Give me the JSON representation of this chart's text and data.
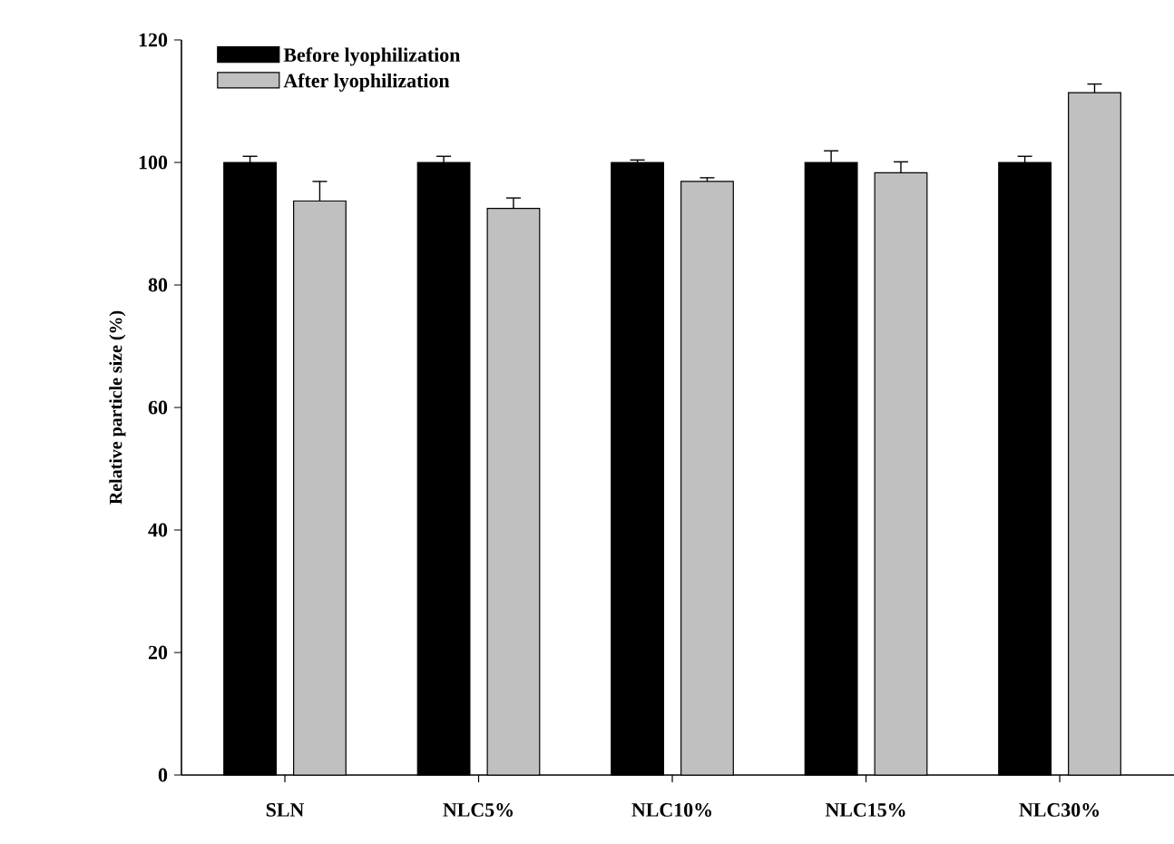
{
  "chart_data": {
    "type": "bar",
    "ylabel": "Relative particle size (%)",
    "categories": [
      "SLN",
      "NLC5%",
      "NLC10%",
      "NLC15%",
      "NLC30%"
    ],
    "series": [
      {
        "name": "Before lyophilization",
        "color": "#000000",
        "values": [
          100,
          100,
          100,
          100,
          100
        ],
        "errors": [
          1,
          1,
          0.4,
          1.9,
          1
        ]
      },
      {
        "name": "After lyophilization",
        "color": "#c0c0c0",
        "values": [
          93.7,
          92.5,
          96.9,
          98.3,
          111.4
        ],
        "errors": [
          3.2,
          1.7,
          0.6,
          1.8,
          1.4
        ]
      }
    ],
    "ylim": [
      0,
      120
    ],
    "yticks": [
      0,
      20,
      40,
      60,
      80,
      100,
      120
    ],
    "legend": "top left",
    "grid": false
  }
}
